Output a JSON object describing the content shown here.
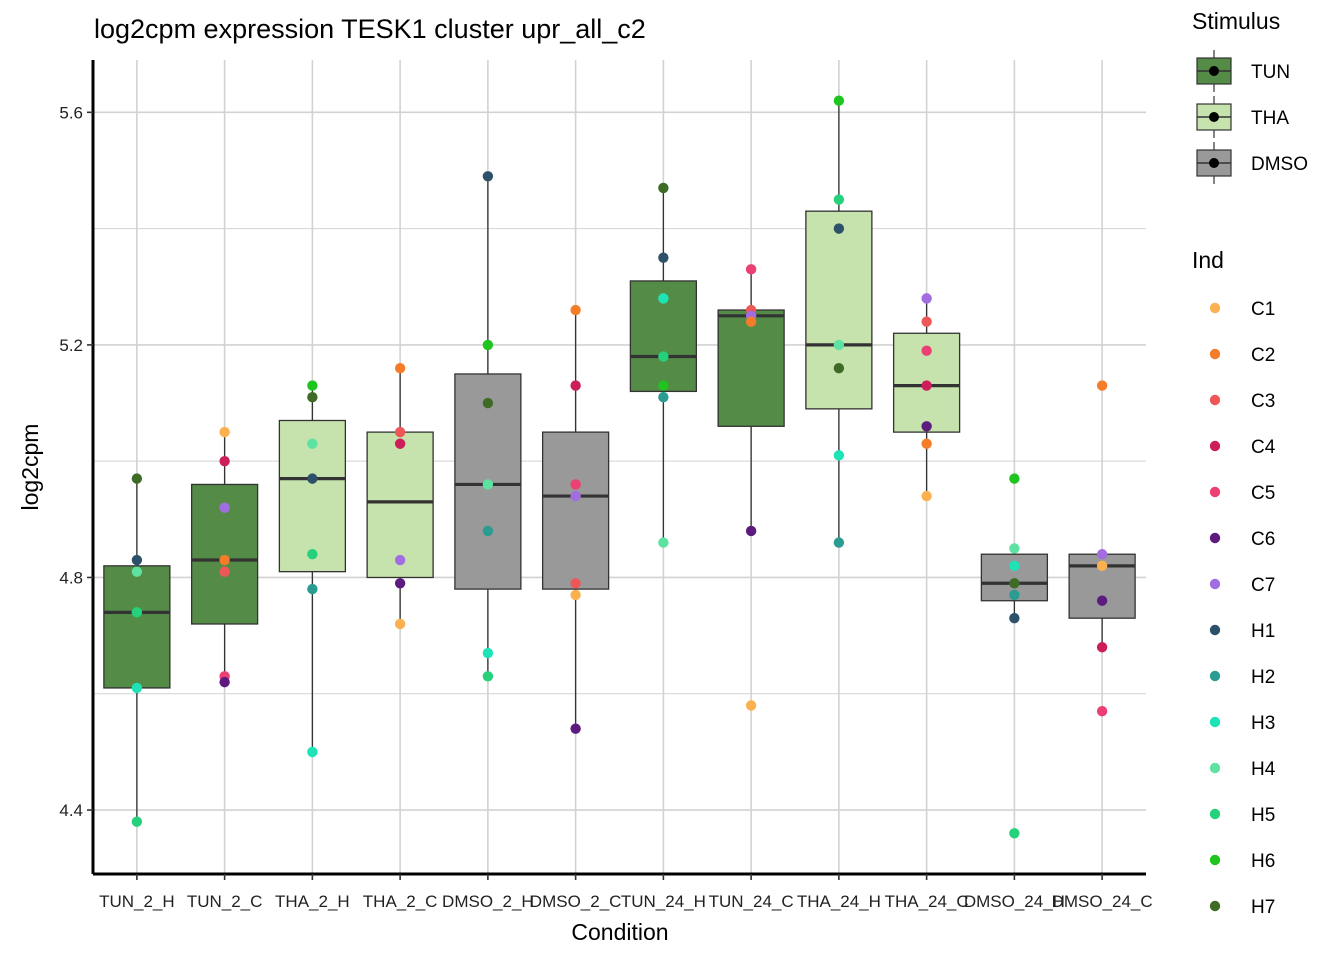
{
  "chart_data": {
    "type": "box",
    "title": "log2cpm expression TESK1 cluster upr_all_c2",
    "xlabel": "Condition",
    "ylabel": "log2cpm",
    "ylim": [
      4.29,
      5.69
    ],
    "yticks": [
      4.4,
      4.8,
      5.2,
      5.6
    ],
    "yticks_minor": [
      4.6,
      5.0,
      5.4
    ],
    "categories": [
      "TUN_2_H",
      "TUN_2_C",
      "THA_2_H",
      "THA_2_C",
      "DMSO_2_H",
      "DMSO_2_C",
      "TUN_24_H",
      "TUN_24_C",
      "THA_24_H",
      "THA_24_C",
      "DMSO_24_H",
      "DMSO_24_C"
    ],
    "tick_labels": [
      "TUN_2_H",
      "TUN_2_C",
      "THA_2_H",
      "THA_2_C",
      "DMSO_2_H",
      "DMSO_2_C",
      "TUN_24_H",
      "TUN_24_C",
      "THA_24_H",
      "THA_24_C",
      "DMSO_24_H",
      "DMSO_24_C"
    ],
    "stimulus": [
      "TUN",
      "TUN",
      "THA",
      "THA",
      "DMSO",
      "DMSO",
      "TUN",
      "TUN",
      "THA",
      "THA",
      "DMSO",
      "DMSO"
    ],
    "boxes": [
      {
        "whisker_low": 4.38,
        "q1": 4.61,
        "median": 4.74,
        "q3": 4.82,
        "whisker_high": 4.97
      },
      {
        "whisker_low": 4.62,
        "q1": 4.72,
        "median": 4.83,
        "q3": 4.96,
        "whisker_high": 5.05
      },
      {
        "whisker_low": 4.5,
        "q1": 4.81,
        "median": 4.97,
        "q3": 5.07,
        "whisker_high": 5.13
      },
      {
        "whisker_low": 4.72,
        "q1": 4.8,
        "median": 4.93,
        "q3": 5.05,
        "whisker_high": 5.16
      },
      {
        "whisker_low": 4.63,
        "q1": 4.78,
        "median": 4.96,
        "q3": 5.15,
        "whisker_high": 5.49
      },
      {
        "whisker_low": 4.54,
        "q1": 4.78,
        "median": 4.94,
        "q3": 5.05,
        "whisker_high": 5.26
      },
      {
        "whisker_low": 4.86,
        "q1": 5.12,
        "median": 5.18,
        "q3": 5.31,
        "whisker_high": 5.47
      },
      {
        "whisker_low": 4.88,
        "q1": 5.06,
        "median": 5.25,
        "q3": 5.26,
        "whisker_high": 5.33
      },
      {
        "whisker_low": 4.86,
        "q1": 5.09,
        "median": 5.2,
        "q3": 5.43,
        "whisker_high": 5.62
      },
      {
        "whisker_low": 4.94,
        "q1": 5.05,
        "median": 5.13,
        "q3": 5.22,
        "whisker_high": 5.28
      },
      {
        "whisker_low": 4.73,
        "q1": 4.76,
        "median": 4.79,
        "q3": 4.84,
        "whisker_high": 4.85
      },
      {
        "whisker_low": 4.68,
        "q1": 4.73,
        "median": 4.82,
        "q3": 4.84,
        "whisker_high": 4.84
      }
    ],
    "points": [
      [
        {
          "ind": "H7",
          "y": 4.97
        },
        {
          "ind": "H1",
          "y": 4.83
        },
        {
          "ind": "H4",
          "y": 4.81
        },
        {
          "ind": "H6",
          "y": 4.74
        },
        {
          "ind": "H5",
          "y": 4.74
        },
        {
          "ind": "H3",
          "y": 4.61
        },
        {
          "ind": "H5",
          "y": 4.38
        }
      ],
      [
        {
          "ind": "C1",
          "y": 5.05
        },
        {
          "ind": "C4",
          "y": 5.0
        },
        {
          "ind": "C7",
          "y": 4.92
        },
        {
          "ind": "C2",
          "y": 4.83
        },
        {
          "ind": "C3",
          "y": 4.81
        },
        {
          "ind": "C5",
          "y": 4.63
        },
        {
          "ind": "C6",
          "y": 4.62
        }
      ],
      [
        {
          "ind": "H6",
          "y": 5.13
        },
        {
          "ind": "H7",
          "y": 5.11
        },
        {
          "ind": "H4",
          "y": 5.03
        },
        {
          "ind": "H1",
          "y": 4.97
        },
        {
          "ind": "H5",
          "y": 4.84
        },
        {
          "ind": "H2",
          "y": 4.78
        },
        {
          "ind": "H3",
          "y": 4.5
        }
      ],
      [
        {
          "ind": "C2",
          "y": 5.16
        },
        {
          "ind": "C3",
          "y": 5.05
        },
        {
          "ind": "C4",
          "y": 5.03
        },
        {
          "ind": "C7",
          "y": 4.83
        },
        {
          "ind": "C6",
          "y": 4.79
        },
        {
          "ind": "C1",
          "y": 4.72
        }
      ],
      [
        {
          "ind": "H1",
          "y": 5.49
        },
        {
          "ind": "H6",
          "y": 5.2
        },
        {
          "ind": "H7",
          "y": 5.1
        },
        {
          "ind": "H4",
          "y": 4.96
        },
        {
          "ind": "H2",
          "y": 4.88
        },
        {
          "ind": "H3",
          "y": 4.67
        },
        {
          "ind": "H5",
          "y": 4.63
        }
      ],
      [
        {
          "ind": "C2",
          "y": 5.26
        },
        {
          "ind": "C4",
          "y": 5.13
        },
        {
          "ind": "C5",
          "y": 4.96
        },
        {
          "ind": "C7",
          "y": 4.94
        },
        {
          "ind": "C3",
          "y": 4.79
        },
        {
          "ind": "C1",
          "y": 4.77
        },
        {
          "ind": "C6",
          "y": 4.54
        }
      ],
      [
        {
          "ind": "H7",
          "y": 5.47
        },
        {
          "ind": "H1",
          "y": 5.35
        },
        {
          "ind": "H3",
          "y": 5.28
        },
        {
          "ind": "H5",
          "y": 5.18
        },
        {
          "ind": "H6",
          "y": 5.13
        },
        {
          "ind": "H2",
          "y": 5.11
        },
        {
          "ind": "H4",
          "y": 4.86
        }
      ],
      [
        {
          "ind": "C5",
          "y": 5.33
        },
        {
          "ind": "C3",
          "y": 5.26
        },
        {
          "ind": "C4",
          "y": 5.25
        },
        {
          "ind": "C7",
          "y": 5.25
        },
        {
          "ind": "C2",
          "y": 5.24
        },
        {
          "ind": "C6",
          "y": 4.88
        },
        {
          "ind": "C1",
          "y": 4.58
        }
      ],
      [
        {
          "ind": "H6",
          "y": 5.62
        },
        {
          "ind": "H5",
          "y": 5.45
        },
        {
          "ind": "H1",
          "y": 5.4
        },
        {
          "ind": "H4",
          "y": 5.2
        },
        {
          "ind": "H7",
          "y": 5.16
        },
        {
          "ind": "H3",
          "y": 5.01
        },
        {
          "ind": "H2",
          "y": 4.86
        }
      ],
      [
        {
          "ind": "C7",
          "y": 5.28
        },
        {
          "ind": "C3",
          "y": 5.24
        },
        {
          "ind": "C5",
          "y": 5.19
        },
        {
          "ind": "C4",
          "y": 5.13
        },
        {
          "ind": "C6",
          "y": 5.06
        },
        {
          "ind": "C2",
          "y": 5.03
        },
        {
          "ind": "C1",
          "y": 4.94
        }
      ],
      [
        {
          "ind": "H6",
          "y": 4.97
        },
        {
          "ind": "H4",
          "y": 4.85
        },
        {
          "ind": "H3",
          "y": 4.82
        },
        {
          "ind": "H7",
          "y": 4.79
        },
        {
          "ind": "H2",
          "y": 4.77
        },
        {
          "ind": "H1",
          "y": 4.73
        },
        {
          "ind": "H5",
          "y": 4.36
        }
      ],
      [
        {
          "ind": "C2",
          "y": 5.13
        },
        {
          "ind": "C7",
          "y": 4.84
        },
        {
          "ind": "C1",
          "y": 4.82
        },
        {
          "ind": "C6",
          "y": 4.76
        },
        {
          "ind": "C4",
          "y": 4.68
        },
        {
          "ind": "C5",
          "y": 4.57
        }
      ]
    ],
    "stimulus_legend": {
      "title": "Stimulus",
      "items": [
        {
          "label": "TUN",
          "color": "#548b47"
        },
        {
          "label": "THA",
          "color": "#c7e3ad"
        },
        {
          "label": "DMSO",
          "color": "#999999"
        }
      ]
    },
    "ind_legend": {
      "title": "Ind",
      "items": [
        {
          "label": "C1",
          "color": "#fbb150"
        },
        {
          "label": "C2",
          "color": "#f57d2a"
        },
        {
          "label": "C3",
          "color": "#ee5757"
        },
        {
          "label": "C4",
          "color": "#cc1e59"
        },
        {
          "label": "C5",
          "color": "#ec3f74"
        },
        {
          "label": "C6",
          "color": "#5e1b7f"
        },
        {
          "label": "C7",
          "color": "#a16ee0"
        },
        {
          "label": "H1",
          "color": "#2d5168"
        },
        {
          "label": "H2",
          "color": "#2b9c91"
        },
        {
          "label": "H3",
          "color": "#1ee3b6"
        },
        {
          "label": "H4",
          "color": "#5ee2a2"
        },
        {
          "label": "H5",
          "color": "#26d17b"
        },
        {
          "label": "H6",
          "color": "#1fc41f"
        },
        {
          "label": "H7",
          "color": "#3e6b26"
        }
      ]
    },
    "colors": {
      "box_stroke": "#333333",
      "median": "#333333",
      "grid": "#d2d2d2",
      "axis": "#000000"
    }
  }
}
